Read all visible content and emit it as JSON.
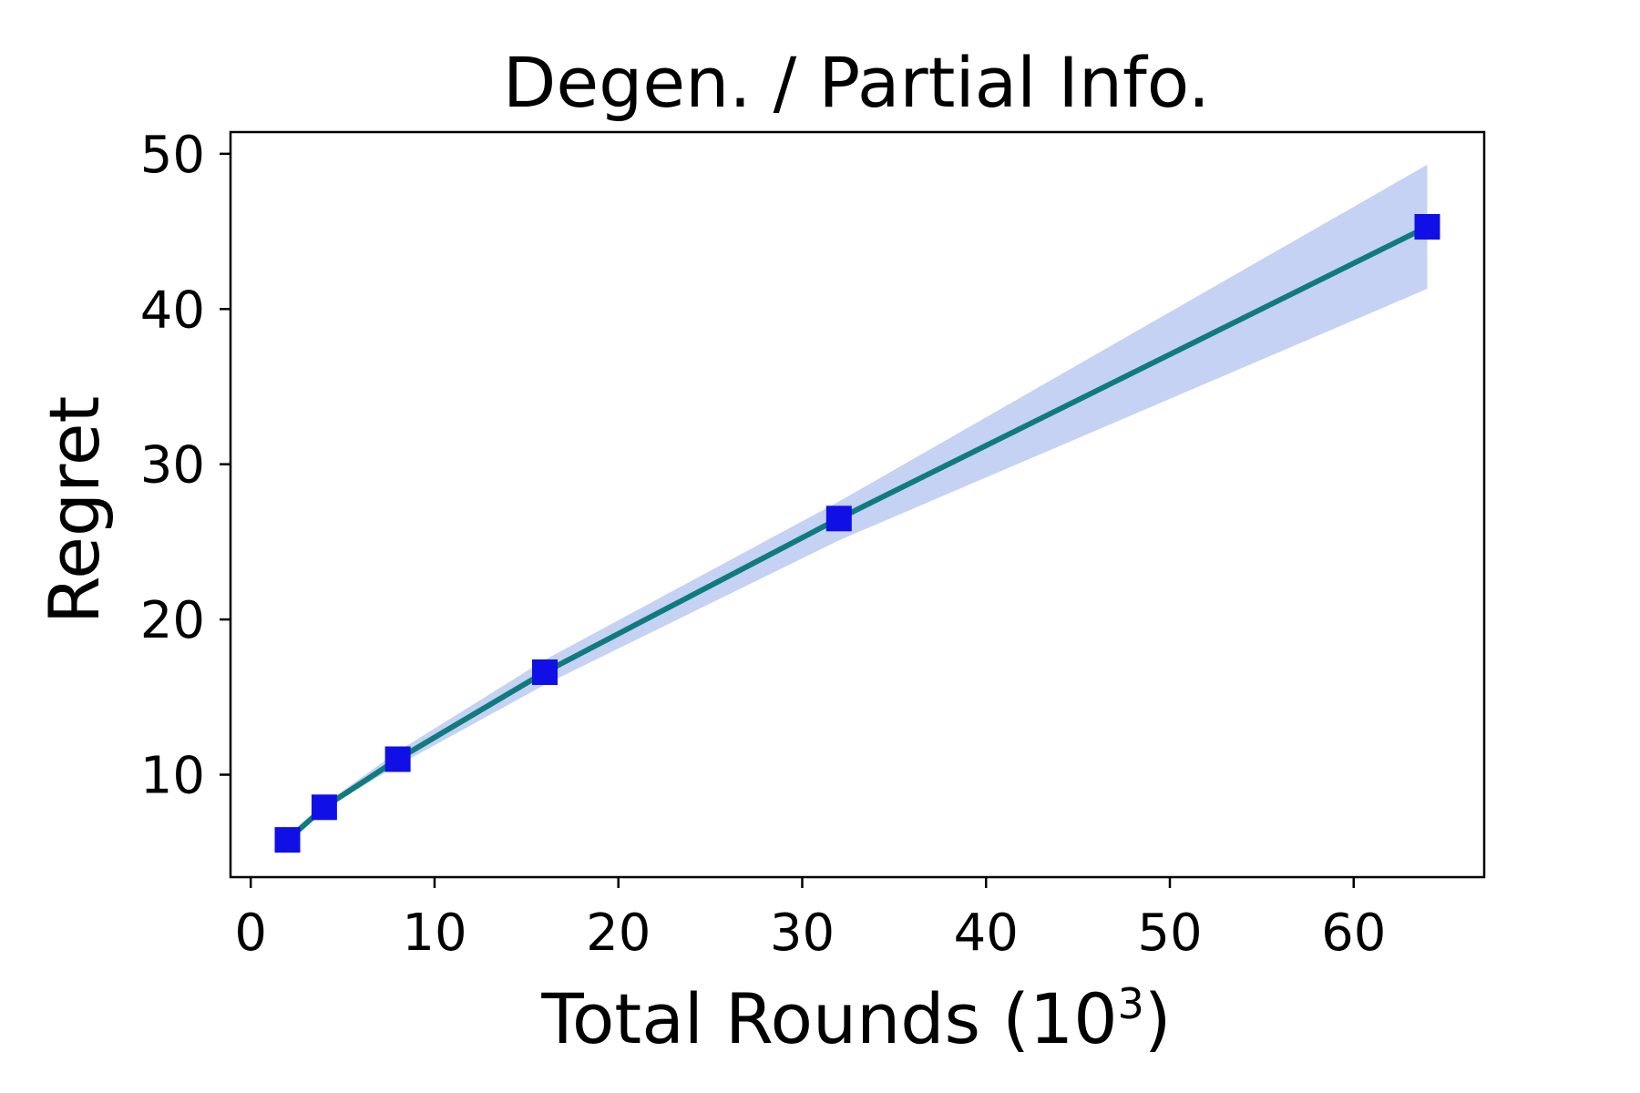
{
  "chart_data": {
    "type": "line",
    "title": "Degen. / Partial Info.",
    "xlabel_main": "Total Rounds (10",
    "xlabel_sup": "3",
    "xlabel_end": ")",
    "ylabel": "Regret",
    "xlim": [
      -1.1,
      67.1
    ],
    "ylim": [
      3.4,
      51.4
    ],
    "xticks": [
      0,
      10,
      20,
      30,
      40,
      50,
      60
    ],
    "yticks": [
      10,
      20,
      30,
      40,
      50
    ],
    "grid": false,
    "series": [
      {
        "x": [
          2,
          4,
          8,
          16,
          32,
          64
        ],
        "y": [
          5.8,
          7.9,
          11.0,
          16.6,
          26.5,
          45.3
        ],
        "y_lower": [
          5.7,
          7.8,
          10.6,
          15.8,
          25.1,
          41.3
        ],
        "y_upper": [
          5.9,
          8.1,
          11.5,
          17.4,
          27.6,
          49.3
        ],
        "line_color": "#0f7b7e",
        "marker_color": "#1010e6",
        "band_color": "#c5d2f3",
        "marker": "square"
      }
    ]
  }
}
